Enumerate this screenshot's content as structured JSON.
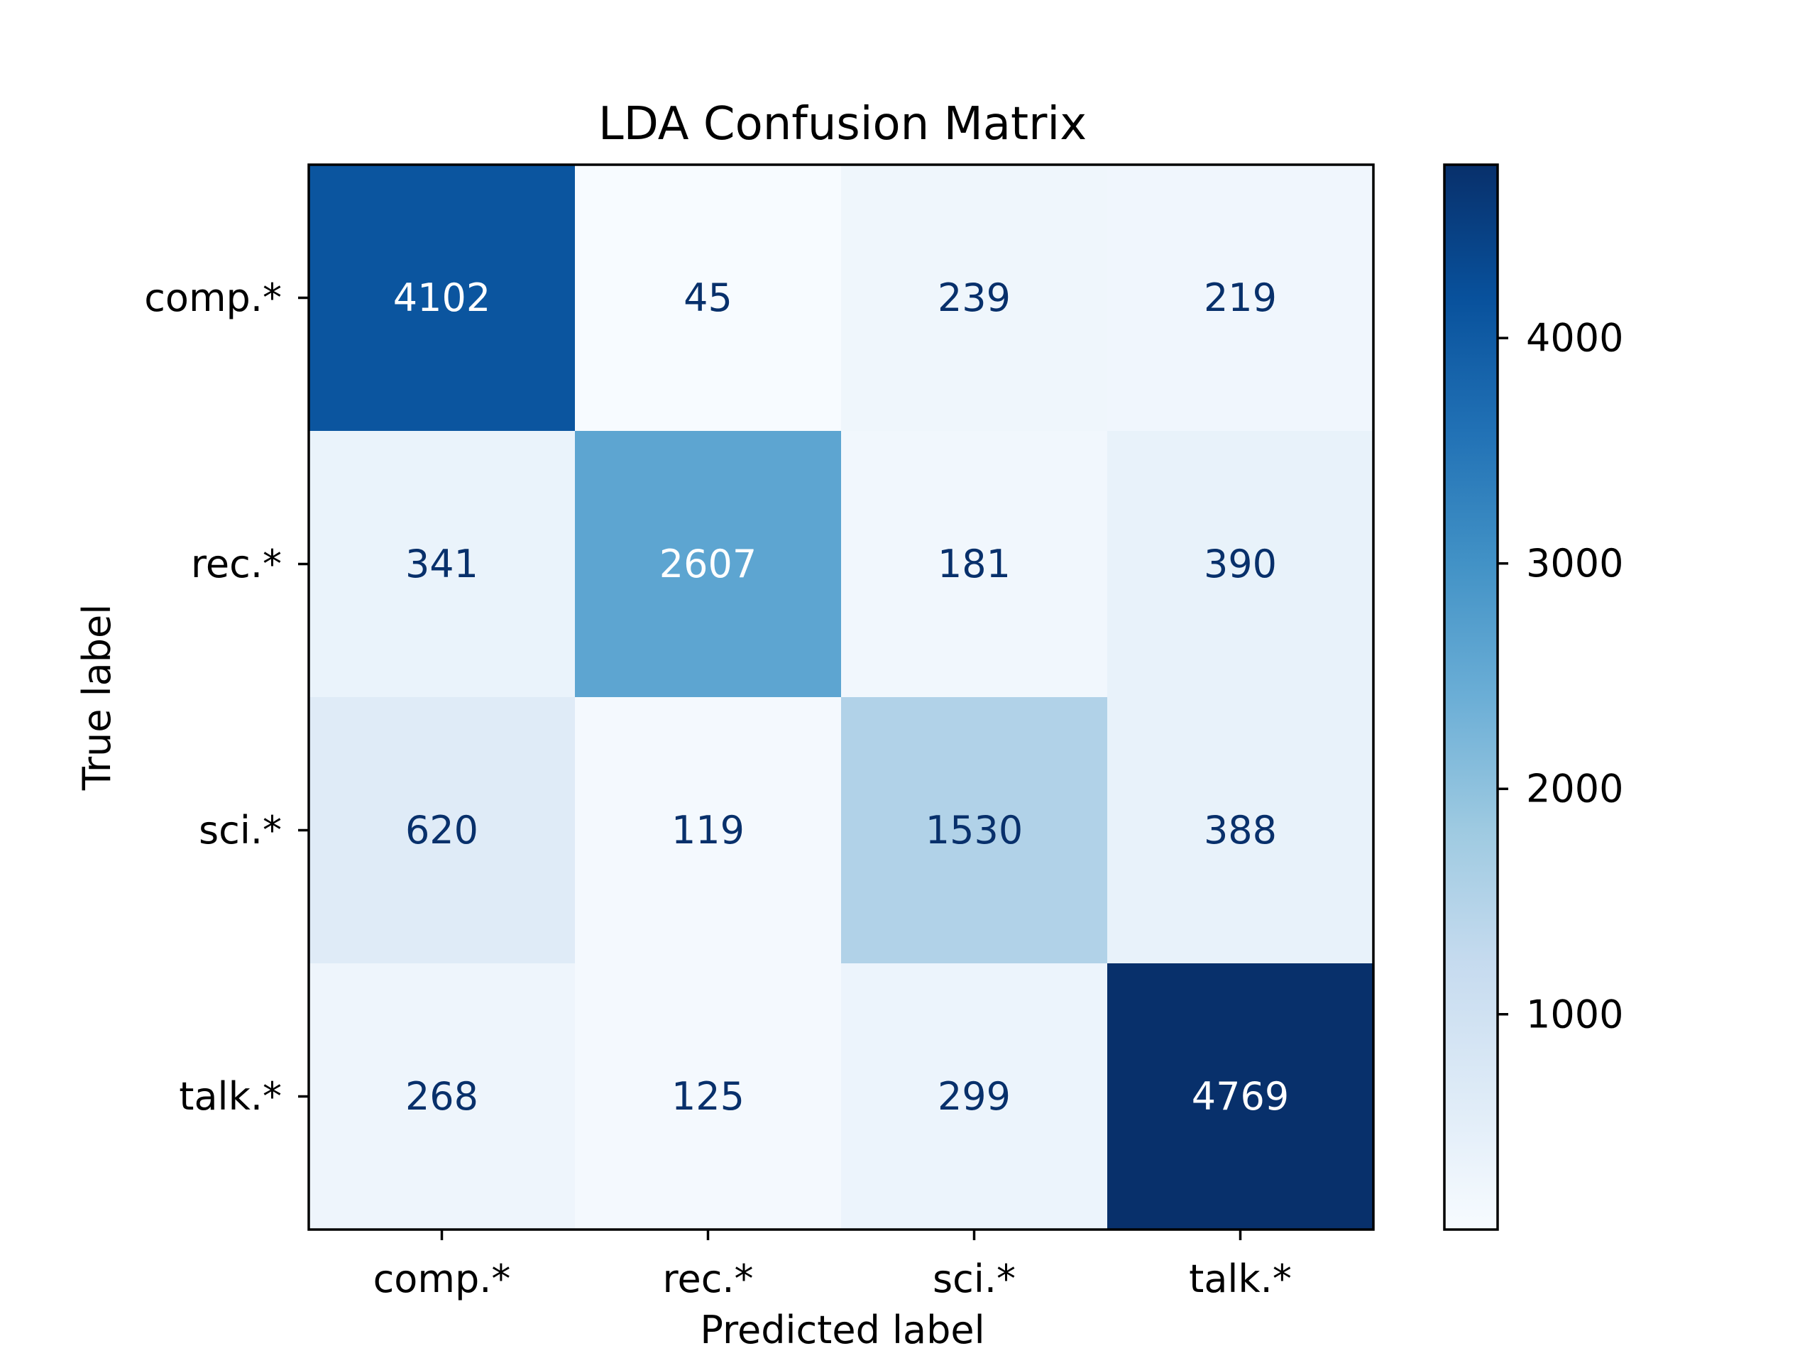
{
  "chart_data": {
    "type": "heatmap",
    "title": "LDA Confusion Matrix",
    "xlabel": "Predicted label",
    "ylabel": "True label",
    "x_categories": [
      "comp.*",
      "rec.*",
      "sci.*",
      "talk.*"
    ],
    "y_categories": [
      "comp.*",
      "rec.*",
      "sci.*",
      "talk.*"
    ],
    "values": [
      [
        4102,
        45,
        239,
        219
      ],
      [
        341,
        2607,
        181,
        390
      ],
      [
        620,
        119,
        1530,
        388
      ],
      [
        268,
        125,
        299,
        4769
      ]
    ],
    "colormap": "Blues",
    "colorbar": {
      "range": [
        45,
        4769
      ],
      "ticks": [
        1000,
        2000,
        3000,
        4000
      ],
      "tick_labels": [
        "1000",
        "2000",
        "3000",
        "4000"
      ]
    },
    "text_colors": {
      "light": "#ffffff",
      "dark": "#08306b"
    },
    "grid": false
  }
}
